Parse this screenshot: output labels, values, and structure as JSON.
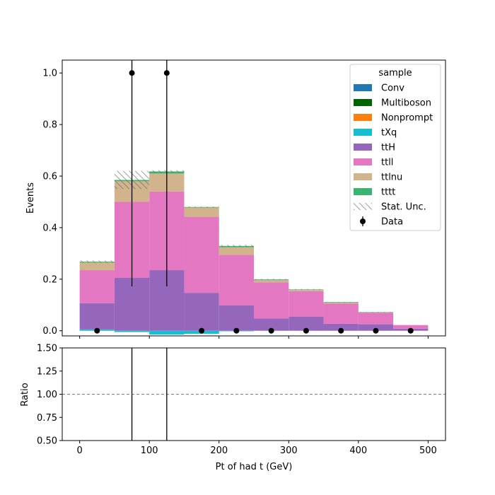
{
  "chart_data": {
    "type": "bar",
    "subtype": "stacked-histogram-with-ratio",
    "x_label": "Pt of had t (GeV)",
    "y_label": "Events",
    "ratio_label": "Ratio",
    "bin_edges": [
      0,
      50,
      100,
      150,
      200,
      250,
      300,
      350,
      400,
      450,
      500
    ],
    "xlim": [
      -25,
      525
    ],
    "ylim": [
      -0.02,
      1.05
    ],
    "ratio_ylim": [
      0.5,
      1.5
    ],
    "x_ticks": [
      "0",
      "100",
      "200",
      "300",
      "400",
      "500"
    ],
    "y_ticks": [
      "0.0",
      "0.2",
      "0.4",
      "0.6",
      "0.8",
      "1.0"
    ],
    "ratio_ticks": [
      "0.50",
      "0.75",
      "1.00",
      "1.25",
      "1.50"
    ],
    "ratio_reference": 1.0,
    "legend": {
      "title": "sample",
      "position": "upper-right",
      "stat_label": "Stat. Unc.",
      "data_label": "Data"
    },
    "series": [
      {
        "name": "Conv",
        "color": "#1f77b4",
        "values": [
          0.0,
          0.0,
          0.0,
          0.0,
          0.0,
          0.0,
          0.0,
          0.0,
          0.0,
          0.0
        ]
      },
      {
        "name": "Multiboson",
        "color": "#006400",
        "values": [
          0.0,
          0.0,
          0.0,
          0.0,
          0.0,
          0.0,
          0.0,
          0.0,
          0.0,
          0.0
        ]
      },
      {
        "name": "Nonprompt",
        "color": "#ff7f0e",
        "values": [
          0.0,
          0.0,
          0.0,
          0.0,
          0.0,
          0.0,
          0.0,
          0.0,
          0.0,
          0.0
        ]
      },
      {
        "name": "tXq",
        "color": "#17becf",
        "values": [
          0.005,
          -0.005,
          -0.015,
          -0.012,
          -0.002,
          0.0,
          0.0,
          0.0,
          0.0,
          0.0
        ]
      },
      {
        "name": "ttH",
        "color": "#9467bd",
        "values": [
          0.102,
          0.205,
          0.235,
          0.147,
          0.099,
          0.048,
          0.055,
          0.027,
          0.025,
          0.008
        ]
      },
      {
        "name": "ttll",
        "color": "#e377c2",
        "values": [
          0.128,
          0.295,
          0.305,
          0.295,
          0.195,
          0.14,
          0.098,
          0.078,
          0.045,
          0.014
        ]
      },
      {
        "name": "ttlnu",
        "color": "#d2b48c",
        "values": [
          0.03,
          0.08,
          0.07,
          0.036,
          0.03,
          0.008,
          0.005,
          0.004,
          0.001,
          0.0
        ]
      },
      {
        "name": "tttt",
        "color": "#3cb371",
        "values": [
          0.003,
          0.005,
          0.008,
          0.002,
          0.005,
          0.003,
          0.002,
          0.002,
          0.001,
          0.0
        ]
      }
    ],
    "stat_unc": [
      0.005,
      0.035,
      0.005,
      0.002,
      0.004,
      0.002,
      0.002,
      0.001,
      0.001,
      0.0
    ],
    "data": {
      "x": [
        25,
        75,
        125,
        175,
        225,
        275,
        325,
        375,
        425,
        475
      ],
      "y": [
        0,
        1,
        1,
        0,
        0,
        0,
        0,
        0,
        0,
        0
      ],
      "yerr_low": [
        0,
        0.828,
        0.828,
        0,
        0,
        0,
        0,
        0,
        0,
        0
      ],
      "yerr_high": [
        0,
        2.3,
        2.3,
        0,
        0,
        0,
        0,
        0,
        0,
        0
      ]
    },
    "ratio_vertical_lines_x": [
      75,
      125
    ]
  }
}
